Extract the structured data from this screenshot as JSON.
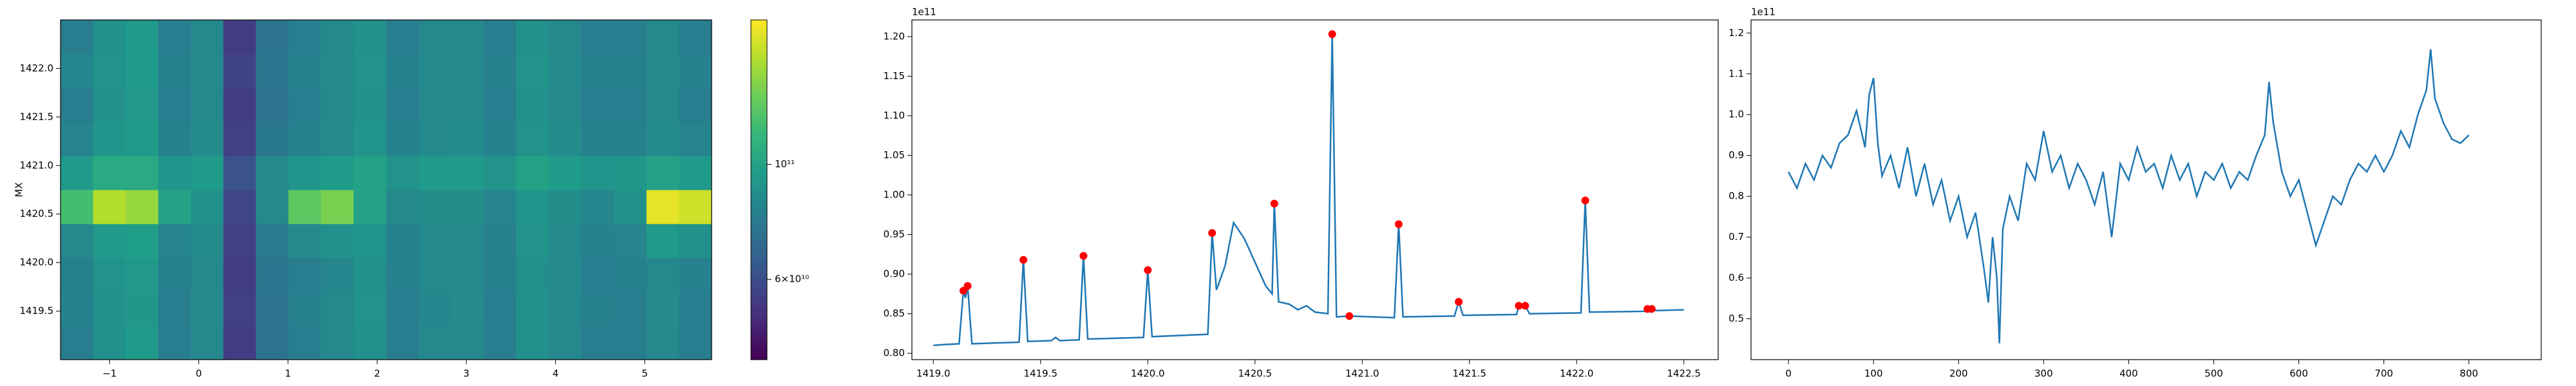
{
  "chart_data": [
    {
      "type": "heatmap",
      "y_label": "MX",
      "colormap": "viridis",
      "log_color": true,
      "xlim": [
        -1.55,
        5.75
      ],
      "ylim": [
        1419.0,
        1422.5
      ],
      "xticks": [
        {
          "value": -1,
          "label": "−1"
        },
        0,
        1,
        2,
        3,
        4,
        5
      ],
      "yticks": [
        1419.5,
        {
          "value": 1420,
          "label": "1420.0"
        },
        1420.5,
        {
          "value": 1421,
          "label": "1421.0"
        },
        1421.5,
        {
          "value": 1422,
          "label": "1422.0"
        }
      ],
      "x_edges": [
        -1.55,
        -1.185,
        -0.82,
        -0.455,
        -0.09,
        0.275,
        0.64,
        1.005,
        1.37,
        1.735,
        2.1,
        2.465,
        2.83,
        3.195,
        3.56,
        3.925,
        4.29,
        4.655,
        5.02,
        5.385,
        5.75
      ],
      "y_edges": [
        1419.0,
        1419.35,
        1419.7,
        1420.05,
        1420.4,
        1420.75,
        1421.1,
        1421.45,
        1421.8,
        1422.15,
        1422.5
      ],
      "values": [
        [
          80000000000.0,
          90000000000.0,
          95000000000.0,
          80000000000.0,
          85000000000.0,
          55000000000.0,
          75000000000.0,
          80000000000.0,
          85000000000.0,
          90000000000.0,
          80000000000.0,
          85000000000.0,
          85000000000.0,
          80000000000.0,
          90000000000.0,
          85000000000.0,
          80000000000.0,
          80000000000.0,
          85000000000.0,
          80000000000.0
        ],
        [
          82000000000.0,
          90000000000.0,
          93000000000.0,
          80000000000.0,
          86000000000.0,
          56000000000.0,
          75000000000.0,
          81000000000.0,
          85000000000.0,
          91000000000.0,
          80000000000.0,
          84000000000.0,
          86000000000.0,
          80000000000.0,
          90000000000.0,
          85000000000.0,
          81000000000.0,
          80000000000.0,
          86000000000.0,
          80000000000.0
        ],
        [
          81000000000.0,
          91000000000.0,
          94000000000.0,
          81000000000.0,
          85000000000.0,
          55000000000.0,
          76000000000.0,
          80000000000.0,
          84000000000.0,
          90000000000.0,
          81000000000.0,
          85000000000.0,
          85000000000.0,
          81000000000.0,
          89000000000.0,
          86000000000.0,
          80000000000.0,
          81000000000.0,
          85000000000.0,
          81000000000.0
        ],
        [
          85000000000.0,
          95000000000.0,
          98000000000.0,
          83000000000.0,
          87000000000.0,
          56000000000.0,
          78000000000.0,
          86000000000.0,
          90000000000.0,
          92000000000.0,
          82000000000.0,
          86000000000.0,
          86000000000.0,
          81000000000.0,
          91000000000.0,
          86000000000.0,
          82000000000.0,
          83000000000.0,
          95000000000.0,
          90000000000.0
        ],
        [
          120000000000.0,
          160000000000.0,
          150000000000.0,
          100000000000.0,
          90000000000.0,
          58000000000.0,
          85000000000.0,
          130000000000.0,
          140000000000.0,
          100000000000.0,
          85000000000.0,
          88000000000.0,
          88000000000.0,
          83000000000.0,
          92000000000.0,
          88000000000.0,
          84000000000.0,
          90000000000.0,
          180000000000.0,
          170000000000.0
        ],
        [
          95000000000.0,
          105000000000.0,
          105000000000.0,
          92000000000.0,
          96000000000.0,
          62000000000.0,
          86000000000.0,
          92000000000.0,
          96000000000.0,
          100000000000.0,
          91000000000.0,
          95000000000.0,
          95000000000.0,
          91000000000.0,
          100000000000.0,
          96000000000.0,
          92000000000.0,
          93000000000.0,
          100000000000.0,
          95000000000.0
        ],
        [
          83000000000.0,
          92000000000.0,
          96000000000.0,
          82000000000.0,
          87000000000.0,
          56000000000.0,
          77000000000.0,
          82000000000.0,
          86000000000.0,
          92000000000.0,
          82000000000.0,
          86000000000.0,
          87000000000.0,
          82000000000.0,
          91000000000.0,
          87000000000.0,
          82000000000.0,
          82000000000.0,
          87000000000.0,
          83000000000.0
        ],
        [
          80000000000.0,
          90000000000.0,
          94000000000.0,
          80000000000.0,
          85000000000.0,
          55000000000.0,
          75000000000.0,
          80000000000.0,
          85000000000.0,
          90000000000.0,
          80000000000.0,
          85000000000.0,
          85000000000.0,
          80000000000.0,
          90000000000.0,
          85000000000.0,
          80000000000.0,
          80000000000.0,
          85000000000.0,
          80000000000.0
        ],
        [
          84000000000.0,
          91000000000.0,
          95000000000.0,
          81000000000.0,
          86000000000.0,
          57000000000.0,
          76000000000.0,
          82000000000.0,
          86000000000.0,
          91000000000.0,
          81000000000.0,
          86000000000.0,
          86000000000.0,
          81000000000.0,
          91000000000.0,
          86000000000.0,
          81000000000.0,
          81000000000.0,
          86000000000.0,
          82000000000.0
        ],
        [
          80000000000.0,
          90000000000.0,
          95000000000.0,
          80000000000.0,
          85000000000.0,
          55000000000.0,
          75000000000.0,
          80000000000.0,
          85000000000.0,
          90000000000.0,
          80000000000.0,
          85000000000.0,
          85000000000.0,
          80000000000.0,
          90000000000.0,
          85000000000.0,
          80000000000.0,
          80000000000.0,
          85000000000.0,
          80000000000.0
        ]
      ],
      "clim": [
        42000000000.0,
        190000000000.0
      ],
      "cticks": [
        {
          "value": 60000000000.0,
          "label": "6×10¹⁰"
        },
        {
          "value": 100000000000.0,
          "label": "10¹¹"
        }
      ]
    },
    {
      "type": "line",
      "offset_label": "1e11",
      "xlim": [
        1418.9,
        1422.66
      ],
      "ylim": [
        0.792,
        1.221
      ],
      "xticks": [
        {
          "value": 1419,
          "label": "1419.0"
        },
        1419.5,
        {
          "value": 1420,
          "label": "1420.0"
        },
        1420.5,
        {
          "value": 1421,
          "label": "1421.0"
        },
        1421.5,
        {
          "value": 1422,
          "label": "1422.0"
        },
        1422.5
      ],
      "yticks": [
        {
          "value": 0.8,
          "label": "0.80"
        },
        0.85,
        {
          "value": 0.9,
          "label": "0.90"
        },
        0.95,
        {
          "value": 1,
          "label": "1.00"
        },
        1.05,
        {
          "value": 1.1,
          "label": "1.10"
        },
        1.15,
        {
          "value": 1.2,
          "label": "1.20"
        }
      ],
      "series": [
        {
          "kind": "line",
          "color": "#1f77b4",
          "x": [
            1419.0,
            1419.05,
            1419.12,
            1419.14,
            1419.15,
            1419.16,
            1419.18,
            1419.4,
            1419.42,
            1419.44,
            1419.55,
            1419.57,
            1419.59,
            1419.68,
            1419.7,
            1419.72,
            1419.98,
            1420.0,
            1420.02,
            1420.28,
            1420.3,
            1420.32,
            1420.36,
            1420.4,
            1420.45,
            1420.5,
            1420.55,
            1420.58,
            1420.59,
            1420.61,
            1420.66,
            1420.7,
            1420.74,
            1420.78,
            1420.84,
            1420.86,
            1420.88,
            1420.94,
            1421.15,
            1421.17,
            1421.19,
            1421.43,
            1421.45,
            1421.47,
            1421.72,
            1421.73,
            1421.76,
            1421.78,
            1422.02,
            1422.04,
            1422.06,
            1422.32,
            1422.33,
            1422.35,
            1422.37,
            1422.5
          ],
          "values": [
            0.81,
            0.811,
            0.812,
            0.879,
            0.87,
            0.885,
            0.812,
            0.814,
            0.918,
            0.815,
            0.816,
            0.82,
            0.816,
            0.817,
            0.923,
            0.818,
            0.82,
            0.905,
            0.821,
            0.824,
            0.952,
            0.88,
            0.91,
            0.965,
            0.945,
            0.915,
            0.885,
            0.875,
            0.989,
            0.865,
            0.862,
            0.855,
            0.86,
            0.852,
            0.85,
            1.203,
            0.846,
            0.847,
            0.845,
            0.963,
            0.846,
            0.847,
            0.865,
            0.848,
            0.849,
            0.86,
            0.86,
            0.85,
            0.851,
            0.993,
            0.852,
            0.853,
            0.856,
            0.856,
            0.854,
            0.855
          ]
        },
        {
          "kind": "scatter",
          "color": "#ff0000",
          "x": [
            1419.14,
            1419.16,
            1419.42,
            1419.7,
            1420.0,
            1420.3,
            1420.59,
            1420.86,
            1420.94,
            1421.17,
            1421.45,
            1421.73,
            1421.76,
            1422.04,
            1422.33,
            1422.35
          ],
          "values": [
            0.879,
            0.885,
            0.918,
            0.923,
            0.905,
            0.952,
            0.989,
            1.203,
            0.847,
            0.963,
            0.865,
            0.86,
            0.86,
            0.993,
            0.856,
            0.856
          ]
        }
      ]
    },
    {
      "type": "line",
      "offset_label": "1e11",
      "xlim": [
        -44,
        885
      ],
      "ylim": [
        0.4,
        1.232
      ],
      "xticks": [
        0,
        100,
        200,
        300,
        400,
        500,
        600,
        700,
        800
      ],
      "yticks": [
        0.5,
        0.6,
        0.7,
        0.8,
        0.9,
        {
          "value": 1,
          "label": "1.0"
        },
        1.1,
        1.2
      ],
      "series": [
        {
          "kind": "line",
          "color": "#1f77b4",
          "x": [
            0,
            10,
            20,
            30,
            40,
            50,
            60,
            70,
            80,
            90,
            95,
            100,
            105,
            110,
            120,
            130,
            140,
            150,
            160,
            170,
            180,
            190,
            200,
            210,
            220,
            230,
            235,
            240,
            245,
            248,
            252,
            260,
            270,
            280,
            290,
            300,
            310,
            320,
            330,
            340,
            350,
            360,
            370,
            380,
            390,
            400,
            410,
            420,
            430,
            440,
            450,
            460,
            470,
            480,
            490,
            500,
            510,
            520,
            530,
            540,
            550,
            560,
            565,
            570,
            580,
            590,
            600,
            610,
            620,
            630,
            640,
            650,
            660,
            670,
            680,
            690,
            700,
            710,
            720,
            730,
            740,
            750,
            755,
            760,
            770,
            780,
            790,
            800
          ],
          "values": [
            0.86,
            0.82,
            0.88,
            0.84,
            0.9,
            0.87,
            0.93,
            0.95,
            1.01,
            0.92,
            1.05,
            1.09,
            0.93,
            0.85,
            0.9,
            0.82,
            0.92,
            0.8,
            0.88,
            0.78,
            0.84,
            0.74,
            0.8,
            0.7,
            0.76,
            0.62,
            0.54,
            0.7,
            0.6,
            0.44,
            0.72,
            0.8,
            0.74,
            0.88,
            0.84,
            0.96,
            0.86,
            0.9,
            0.82,
            0.88,
            0.84,
            0.78,
            0.86,
            0.7,
            0.88,
            0.84,
            0.92,
            0.86,
            0.88,
            0.82,
            0.9,
            0.84,
            0.88,
            0.8,
            0.86,
            0.84,
            0.88,
            0.82,
            0.86,
            0.84,
            0.9,
            0.95,
            1.08,
            0.98,
            0.86,
            0.8,
            0.84,
            0.76,
            0.68,
            0.74,
            0.8,
            0.78,
            0.84,
            0.88,
            0.86,
            0.9,
            0.86,
            0.9,
            0.96,
            0.92,
            1.0,
            1.06,
            1.16,
            1.04,
            0.98,
            0.94,
            0.93,
            0.95
          ]
        }
      ]
    }
  ]
}
